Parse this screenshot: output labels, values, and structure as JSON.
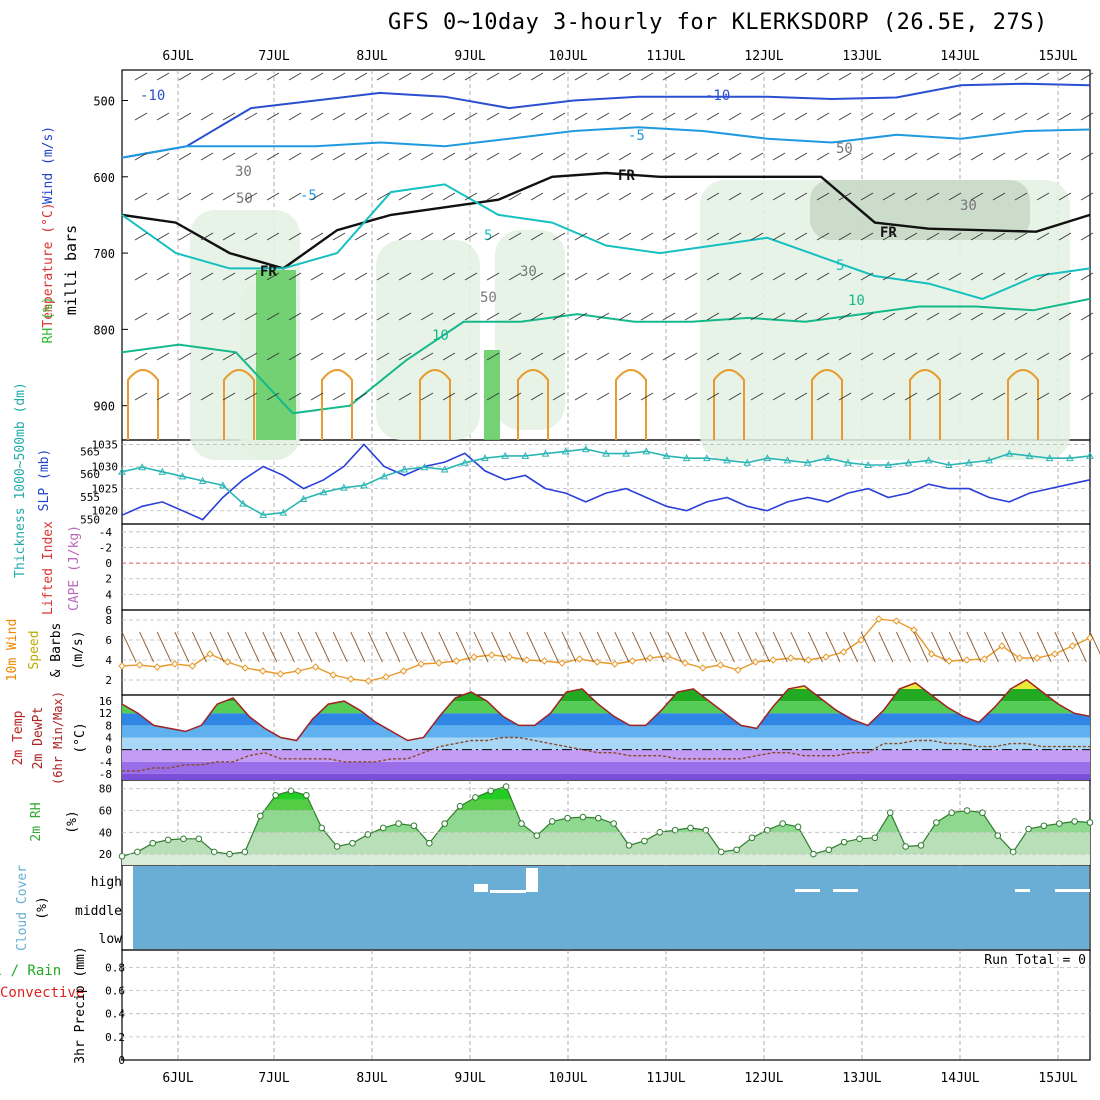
{
  "title": "GFS 0~10day 3-hourly for KLERKSDORP (26.5E, 27S)",
  "colors": {
    "wind_temp": "#2244cc",
    "temperature": "#dd3333",
    "rh": "#33bb33",
    "thickness": "#22aaaa",
    "slp": "#2244cc",
    "lifted_index": "#dd3333",
    "cape": "#bb66bb",
    "wind10m": "#ee8800",
    "speed": "#bbaa00",
    "temp2m": "#bb2222",
    "dewpt": "#aa2222",
    "rh2m": "#33aa33",
    "cloud": "#6aaed6",
    "precip": "#22aa22",
    "convective": "#dd2222"
  },
  "chart_data": [
    {
      "type": "contour",
      "panel": "upper-air",
      "ylabel": "milli bars",
      "yticks": [
        500,
        600,
        700,
        800,
        900
      ],
      "x_dates": [
        "6JUL",
        "7JUL",
        "8JUL",
        "9JUL",
        "10JUL",
        "11JUL",
        "12JUL",
        "13JUL",
        "14JUL",
        "15JUL"
      ],
      "side_labels": [
        "Wind (m/s)",
        "Temperature (°C)",
        "RH (%)"
      ],
      "contour_labels": [
        "-10",
        "-10",
        "-5",
        "-5",
        "5",
        "5",
        "10",
        "10",
        "FR",
        "FR",
        "FR",
        "30",
        "50",
        "30",
        "50",
        "30",
        "50"
      ],
      "isotherms": {
        "minus10": [
          575,
          560,
          510,
          500,
          490,
          495,
          510,
          500,
          495,
          495,
          495,
          498,
          496,
          480,
          478,
          480
        ],
        "minus5": [
          575,
          560,
          560,
          560,
          555,
          560,
          550,
          540,
          535,
          540,
          550,
          555,
          545,
          550,
          540,
          538
        ],
        "zero_fr": [
          650,
          660,
          700,
          720,
          670,
          650,
          640,
          630,
          600,
          595,
          600,
          600,
          600,
          600,
          660,
          668,
          670,
          672,
          650
        ],
        "plus5": [
          650,
          700,
          720,
          720,
          700,
          620,
          610,
          650,
          660,
          690,
          700,
          690,
          680,
          705,
          730,
          740,
          760,
          730,
          720
        ],
        "plus10": [
          830,
          820,
          830,
          910,
          900,
          840,
          790,
          790,
          780,
          790,
          790,
          785,
          790,
          780,
          770,
          770,
          775,
          760
        ]
      }
    },
    {
      "type": "line",
      "panel": "slp-thickness",
      "ylabel_left": "Thickness 1000~500mb (dm)",
      "ylabel_right": "SLP (mb)",
      "thickness_ticks": [
        550,
        555,
        560,
        565
      ],
      "slp_ticks": [
        1020,
        1025,
        1030,
        1035
      ],
      "series": [
        {
          "name": "SLP (mb)",
          "values": [
            1019,
            1021,
            1022,
            1020,
            1018,
            1023,
            1027,
            1030,
            1028,
            1025,
            1027,
            1030,
            1035,
            1030,
            1028,
            1030,
            1031,
            1033,
            1029,
            1027,
            1028,
            1025,
            1024,
            1022,
            1024,
            1025,
            1023,
            1021,
            1020,
            1022,
            1023,
            1021,
            1020,
            1022,
            1023,
            1022,
            1024,
            1025,
            1023,
            1024,
            1026,
            1025,
            1025,
            1023,
            1022,
            1024,
            1025,
            1026,
            1027
          ]
        },
        {
          "name": "Thickness 1000~500mb (dm)",
          "values": [
            560.5,
            561.5,
            560.5,
            559.5,
            558.5,
            557.5,
            553.5,
            551.0,
            551.5,
            554.5,
            556.0,
            557.0,
            557.5,
            559.5,
            561.0,
            561.5,
            561.0,
            562.5,
            563.5,
            564.0,
            564.0,
            564.5,
            565.0,
            565.5,
            564.5,
            564.5,
            565.0,
            564.0,
            563.5,
            563.5,
            563.0,
            562.5,
            563.5,
            563.0,
            562.5,
            563.5,
            562.5,
            562.0,
            562.0,
            562.5,
            563.0,
            562.0,
            562.5,
            563.0,
            564.5,
            564.0,
            563.5,
            563.5,
            564.0
          ]
        }
      ]
    },
    {
      "type": "line",
      "panel": "stability",
      "ylabel_left": "Lifted Index",
      "ylabel_right": "CAPE (J/kg)",
      "yticks": [
        -4,
        -2,
        0,
        2,
        4,
        6
      ],
      "series": [
        {
          "name": "Lifted Index",
          "values": []
        }
      ]
    },
    {
      "type": "line",
      "panel": "wind10m",
      "ylabel": "10m Wind Speed & Barbs (m/s)",
      "yticks": [
        2,
        4,
        6,
        8
      ],
      "series": [
        {
          "name": "Speed (m/s)",
          "values": [
            3.4,
            3.5,
            3.3,
            3.6,
            3.4,
            4.6,
            3.8,
            3.2,
            2.9,
            2.6,
            2.9,
            3.3,
            2.5,
            2.1,
            1.9,
            2.3,
            2.9,
            3.6,
            3.7,
            3.9,
            4.3,
            4.5,
            4.3,
            4.0,
            3.9,
            3.7,
            4.1,
            3.8,
            3.6,
            3.9,
            4.2,
            4.4,
            3.7,
            3.2,
            3.5,
            3.0,
            3.8,
            4.0,
            4.2,
            4.0,
            4.3,
            4.8,
            6.0,
            8.1,
            7.9,
            7.0,
            4.6,
            3.9,
            4.0,
            4.1,
            5.4,
            4.2,
            4.2,
            4.6,
            5.4,
            6.2
          ]
        }
      ]
    },
    {
      "type": "area",
      "panel": "temp2m",
      "ylabel": "2m Temp 2m DewPt (6hr Min/Max) (°C)",
      "yticks": [
        -8,
        -4,
        0,
        4,
        8,
        12,
        16
      ],
      "series": [
        {
          "name": "2m Temp",
          "values": [
            15,
            12,
            8,
            7,
            6,
            8,
            15,
            17,
            11,
            7,
            4,
            3,
            10,
            15,
            16,
            13,
            9,
            6,
            3,
            4,
            11,
            17,
            19,
            16,
            11,
            8,
            8,
            12,
            19,
            20,
            15,
            11,
            8,
            8,
            13,
            19,
            20,
            16,
            12,
            8,
            7,
            14,
            20,
            21,
            17,
            13,
            10,
            8,
            13,
            20,
            22,
            18,
            14,
            11,
            9,
            14,
            20,
            23,
            19,
            15,
            12,
            11
          ]
        },
        {
          "name": "2m DewPt",
          "values": [
            -7,
            -7,
            -6,
            -6,
            -5,
            -5,
            -4,
            -4,
            -2,
            -1,
            -3,
            -3,
            -3,
            -3,
            -4,
            -4,
            -4,
            -3,
            -3,
            -1,
            1,
            2,
            3,
            3,
            4,
            4,
            3,
            2,
            1,
            0,
            -1,
            -1,
            -2,
            -2,
            -2,
            -3,
            -3,
            -3,
            -3,
            -3,
            -2,
            -1,
            -1,
            -2,
            -2,
            -2,
            -1,
            -1,
            2,
            2,
            3,
            3,
            2,
            2,
            1,
            1,
            2,
            2,
            1,
            1,
            1,
            1
          ]
        }
      ]
    },
    {
      "type": "area",
      "panel": "rh2m",
      "ylabel": "2m RH (%)",
      "yticks": [
        20,
        40,
        60,
        80
      ],
      "series": [
        {
          "name": "2m RH (%)",
          "values": [
            18,
            22,
            30,
            33,
            34,
            34,
            22,
            20,
            22,
            55,
            74,
            78,
            74,
            44,
            27,
            30,
            38,
            44,
            48,
            46,
            30,
            48,
            64,
            72,
            78,
            82,
            48,
            37,
            50,
            53,
            54,
            53,
            48,
            28,
            32,
            40,
            42,
            44,
            42,
            22,
            24,
            35,
            42,
            48,
            45,
            20,
            24,
            31,
            34,
            35,
            58,
            27,
            28,
            49,
            58,
            60,
            58,
            37,
            22,
            43,
            46,
            48,
            50,
            49
          ]
        }
      ]
    },
    {
      "type": "bar",
      "panel": "cloud",
      "ylabel": "Cloud Cover (%)",
      "ytick_labels": [
        "high",
        "middle",
        "low"
      ],
      "series": [
        {
          "name": "Cloud Cover",
          "values": []
        }
      ]
    },
    {
      "type": "bar",
      "panel": "precip",
      "ylabel_main": "3hr Precip (mm)",
      "ylabel_total": "Total / Rain",
      "ylabel_convective": "Convective",
      "yticks": [
        0,
        0.2,
        0.4,
        0.6,
        0.8
      ],
      "annotation": "Run Total = 0",
      "series": [
        {
          "name": "Total / Rain",
          "values": []
        },
        {
          "name": "Convective",
          "values": []
        }
      ]
    }
  ]
}
